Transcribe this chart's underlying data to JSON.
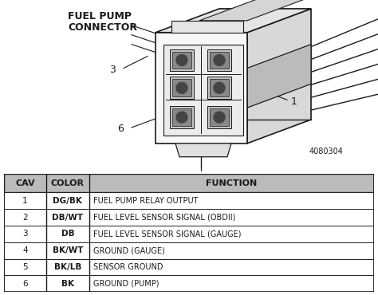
{
  "title_line1": "FUEL PUMP",
  "title_line2": "CONNECTOR",
  "diagram_note": "4080304",
  "table_headers": [
    "CAV",
    "COLOR",
    "FUNCTION"
  ],
  "table_rows": [
    [
      "1",
      "DG/BK",
      "FUEL PUMP RELAY OUTPUT"
    ],
    [
      "2",
      "DB/WT",
      "FUEL LEVEL SENSOR SIGNAL (OBDII)"
    ],
    [
      "3",
      "DB",
      "FUEL LEVEL SENSOR SIGNAL (GAUGE)"
    ],
    [
      "4",
      "BK/WT",
      "GROUND (GAUGE)"
    ],
    [
      "5",
      "BK/LB",
      "SENSOR GROUND"
    ],
    [
      "6",
      "BK",
      "GROUND (PUMP)"
    ]
  ],
  "bg_color": "#ffffff",
  "line_color": "#1a1a1a",
  "table_header_bg": "#bbbbbb",
  "fig_width": 4.74,
  "fig_height": 3.7,
  "dpi": 100,
  "connector_color": "#f5f5f5",
  "shade_color": "#cccccc",
  "dark_shade": "#999999"
}
